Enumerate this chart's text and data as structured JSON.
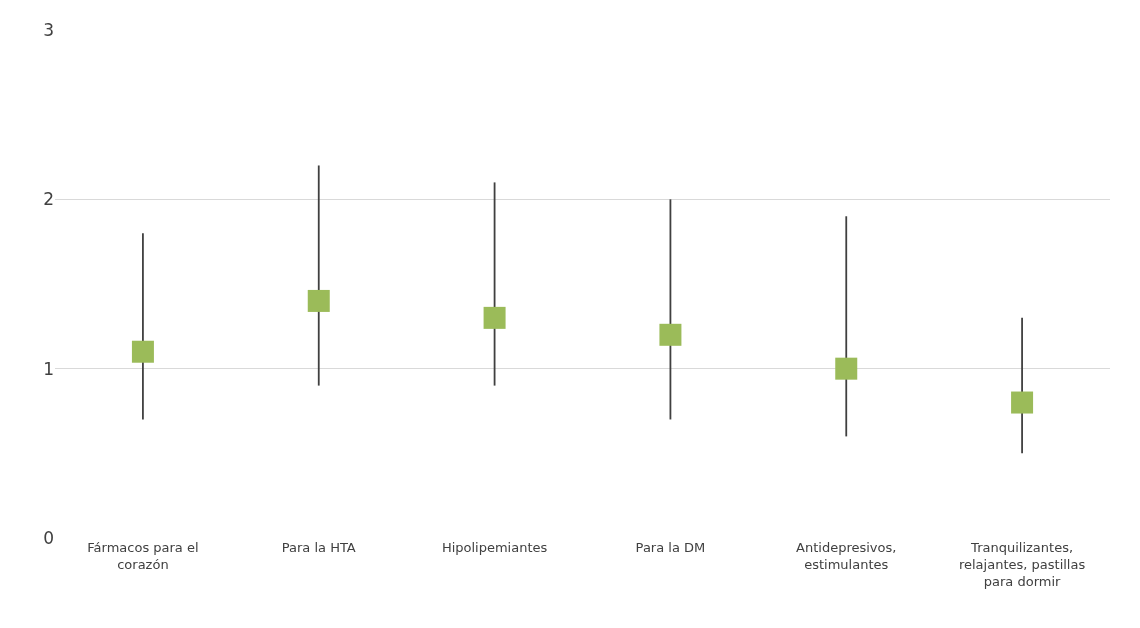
{
  "chart_data": {
    "type": "scatter",
    "categories": [
      "Fármacos para el corazón",
      "Para la HTA",
      "Hipolipemiantes",
      "Para la DM",
      "Antidepresivos, estimulantes",
      "Tranquilizantes, relajantes, pastillas para dormir"
    ],
    "values": [
      1.1,
      1.4,
      1.3,
      1.2,
      1.0,
      0.8
    ],
    "errors": [
      [
        0.7,
        1.8
      ],
      [
        0.9,
        2.2
      ],
      [
        0.9,
        2.1
      ],
      [
        0.7,
        2.0
      ],
      [
        0.6,
        1.9
      ],
      [
        0.5,
        1.3
      ]
    ],
    "color": "#9bbb59",
    "marker": "square",
    "ylim": [
      0,
      3
    ],
    "yticks": [
      0,
      1,
      2,
      3
    ],
    "grid": "y"
  }
}
